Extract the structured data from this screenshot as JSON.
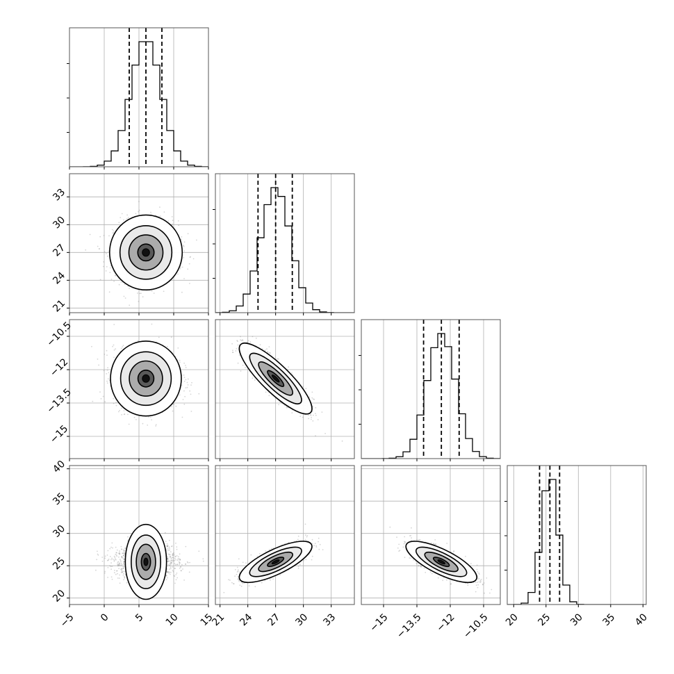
{
  "chart_data": {
    "type": "corner",
    "parameters": [
      {
        "range": [
          -5,
          15
        ],
        "ticks": [
          -5,
          0,
          5,
          10,
          15
        ],
        "mean": 6.0,
        "sd": 2.2,
        "quantiles": [
          3.6,
          6.0,
          8.3
        ]
      },
      {
        "range": [
          20.5,
          35.5
        ],
        "ticks": [
          21,
          24,
          27,
          30,
          33
        ],
        "mean": 27.0,
        "sd": 1.6,
        "quantiles": [
          25.1,
          27.0,
          28.8
        ]
      },
      {
        "range": [
          -16,
          -9.75
        ],
        "ticks": [
          -15.0,
          -13.5,
          -12.0,
          -10.5
        ],
        "mean": -12.4,
        "sd": 0.65,
        "quantiles": [
          -13.2,
          -12.4,
          -11.6
        ]
      },
      {
        "range": [
          19,
          40.5
        ],
        "ticks": [
          20,
          25,
          30,
          35,
          40
        ],
        "mean": 25.6,
        "sd": 1.3,
        "quantiles": [
          24.0,
          25.6,
          27.1
        ]
      }
    ],
    "correlations": [
      [
        0,
        0,
        0,
        0
      ],
      [
        0,
        0,
        -0.85,
        0.75
      ],
      [
        0,
        -0.85,
        0,
        -0.75
      ],
      [
        0,
        0.75,
        -0.75,
        0
      ]
    ],
    "contour_levels": "1-2 sigma",
    "grid": true,
    "colors": {
      "scatter": "#888888",
      "hist": "#000000",
      "contour": "#000000"
    }
  }
}
